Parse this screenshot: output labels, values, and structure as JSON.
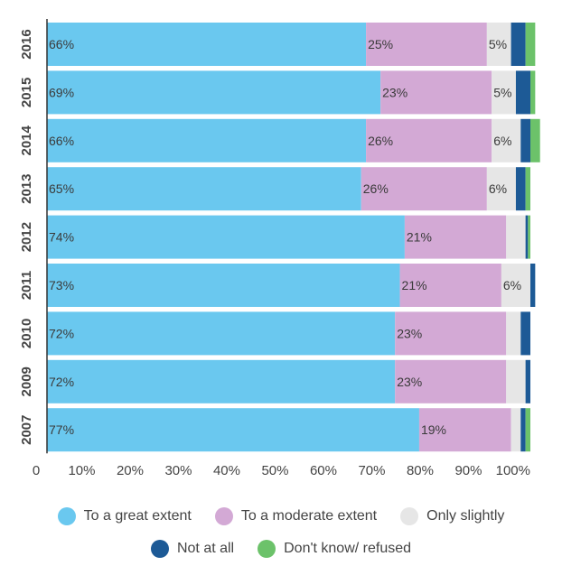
{
  "chart_data": {
    "type": "bar",
    "orientation": "horizontal",
    "stacked": true,
    "categories": [
      "2016",
      "2015",
      "2014",
      "2013",
      "2012",
      "2011",
      "2010",
      "2009",
      "2007"
    ],
    "series": [
      {
        "name": "To a great extent",
        "color": "#6ac8ef",
        "values": [
          66,
          69,
          66,
          65,
          74,
          73,
          72,
          72,
          77
        ]
      },
      {
        "name": "To a moderate extent",
        "color": "#d3a9d5",
        "values": [
          25,
          23,
          26,
          26,
          21,
          21,
          23,
          23,
          19
        ]
      },
      {
        "name": "Only slightly",
        "color": "#e6e6e6",
        "values": [
          5,
          5,
          6,
          6,
          4,
          6,
          3,
          4,
          2
        ]
      },
      {
        "name": "Not at all",
        "color": "#1d5a96",
        "values": [
          3,
          3,
          2,
          2,
          0.5,
          1,
          2,
          1,
          1
        ]
      },
      {
        "name": "Don't know/ refused",
        "color": "#6cc26a",
        "values": [
          2,
          1,
          2,
          1,
          0.5,
          0,
          0,
          0,
          1
        ]
      }
    ],
    "data_labels": [
      [
        "66%",
        "25%",
        "5%",
        "",
        ""
      ],
      [
        "69%",
        "23%",
        "5%",
        "",
        ""
      ],
      [
        "66%",
        "26%",
        "6%",
        "",
        ""
      ],
      [
        "65%",
        "26%",
        "6%",
        "",
        ""
      ],
      [
        "74%",
        "21%",
        "",
        "",
        ""
      ],
      [
        "73%",
        "21%",
        "6%",
        "",
        ""
      ],
      [
        "72%",
        "23%",
        "",
        "",
        ""
      ],
      [
        "72%",
        "23%",
        "",
        "",
        ""
      ],
      [
        "77%",
        "19%",
        "",
        "",
        ""
      ]
    ],
    "xlim": [
      0,
      100
    ],
    "xticks": [
      "0",
      "10%",
      "20%",
      "30%",
      "40%",
      "50%",
      "60%",
      "70%",
      "80%",
      "90%",
      "100%"
    ],
    "xlabel": "",
    "ylabel": "",
    "title": "",
    "grid": false,
    "legend_position": "bottom"
  }
}
